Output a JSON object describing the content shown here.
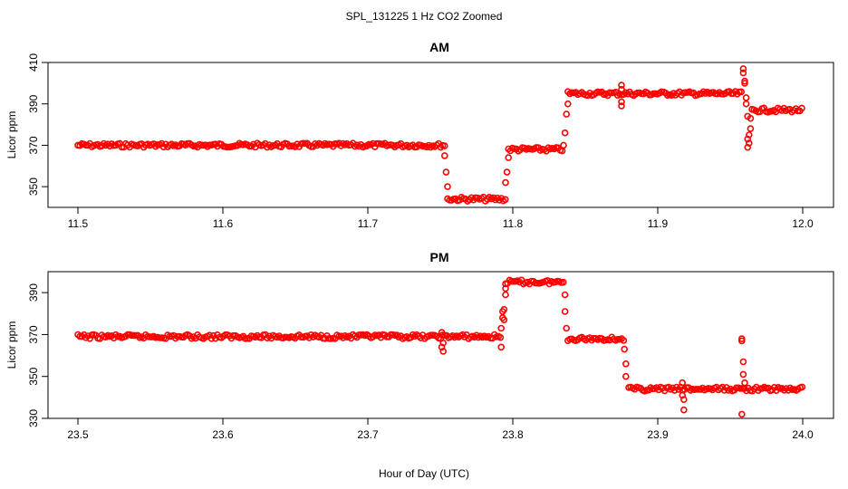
{
  "figure": {
    "title": "SPL_131225  1 Hz CO2 Zoomed",
    "xlabel": "Hour of Day (UTC)"
  },
  "chart_data": [
    {
      "type": "scatter",
      "title": "AM",
      "xlabel": "",
      "ylabel": "Licor ppm",
      "xlim": [
        11.5,
        12.0
      ],
      "ylim": [
        340,
        410
      ],
      "xticks": [
        "11.5",
        "11.6",
        "11.7",
        "11.8",
        "11.9",
        "12.0"
      ],
      "yticks": [
        "350",
        "370",
        "390",
        "410"
      ],
      "grid": false,
      "marker_color": "#ff0000",
      "segments": [
        {
          "x_start": 11.5,
          "x_end": 11.753,
          "y": 370
        },
        {
          "x_start": 11.755,
          "x_end": 11.795,
          "y": 344
        },
        {
          "x_start": 11.797,
          "x_end": 11.835,
          "y": 368
        },
        {
          "x_start": 11.838,
          "x_end": 11.958,
          "y": 395
        },
        {
          "x_start": 11.965,
          "x_end": 12.0,
          "y": 387
        }
      ],
      "points": [
        [
          11.753,
          365
        ],
        [
          11.754,
          357
        ],
        [
          11.755,
          350
        ],
        [
          11.795,
          352
        ],
        [
          11.796,
          357
        ],
        [
          11.797,
          364
        ],
        [
          11.835,
          370
        ],
        [
          11.836,
          376
        ],
        [
          11.837,
          385
        ],
        [
          11.838,
          390
        ],
        [
          11.875,
          399
        ],
        [
          11.875,
          397
        ],
        [
          11.875,
          389
        ],
        [
          11.875,
          391
        ],
        [
          11.959,
          407
        ],
        [
          11.959,
          405
        ],
        [
          11.96,
          401
        ],
        [
          11.96,
          400
        ],
        [
          11.961,
          393
        ],
        [
          11.961,
          390
        ],
        [
          11.962,
          384
        ],
        [
          11.962,
          373
        ],
        [
          11.962,
          369
        ],
        [
          11.963,
          371
        ],
        [
          11.963,
          375
        ],
        [
          11.964,
          378
        ],
        [
          11.964,
          383
        ]
      ]
    },
    {
      "type": "scatter",
      "title": "PM",
      "xlabel": "",
      "ylabel": "Licor ppm",
      "xlim": [
        23.5,
        24.0
      ],
      "ylim": [
        330,
        400
      ],
      "xticks": [
        "23.5",
        "23.6",
        "23.7",
        "23.8",
        "23.9",
        "24.0"
      ],
      "yticks": [
        "330",
        "350",
        "370",
        "390"
      ],
      "grid": false,
      "marker_color": "#ff0000",
      "segments": [
        {
          "x_start": 23.5,
          "x_end": 23.792,
          "y": 369
        },
        {
          "x_start": 23.795,
          "x_end": 23.835,
          "y": 395
        },
        {
          "x_start": 23.838,
          "x_end": 23.877,
          "y": 368
        },
        {
          "x_start": 23.88,
          "x_end": 24.0,
          "y": 344
        }
      ],
      "points": [
        [
          23.751,
          371
        ],
        [
          23.751,
          364
        ],
        [
          23.752,
          362
        ],
        [
          23.752,
          366
        ],
        [
          23.792,
          364
        ],
        [
          23.792,
          373
        ],
        [
          23.793,
          378
        ],
        [
          23.793,
          381
        ],
        [
          23.794,
          382
        ],
        [
          23.794,
          377
        ],
        [
          23.795,
          389
        ],
        [
          23.795,
          392
        ],
        [
          23.836,
          389
        ],
        [
          23.836,
          381
        ],
        [
          23.837,
          373
        ],
        [
          23.877,
          363
        ],
        [
          23.878,
          356
        ],
        [
          23.878,
          350
        ],
        [
          23.917,
          347
        ],
        [
          23.917,
          341
        ],
        [
          23.918,
          339
        ],
        [
          23.918,
          334
        ],
        [
          23.958,
          368
        ],
        [
          23.958,
          367
        ],
        [
          23.959,
          357
        ],
        [
          23.959,
          351
        ],
        [
          23.96,
          347
        ],
        [
          23.958,
          332
        ]
      ]
    }
  ]
}
